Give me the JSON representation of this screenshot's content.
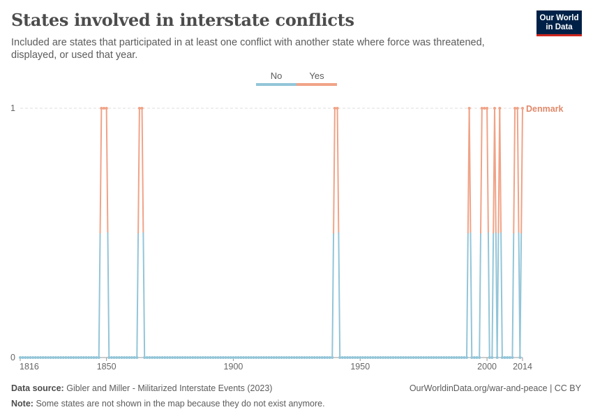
{
  "header": {
    "title": "States involved in interstate conflicts",
    "subtitle": "Included are states that participated in at least one conflict with another state where force was threatened, displayed, or used that year.",
    "logo_line1": "Our World",
    "logo_line2": "in Data"
  },
  "legend": {
    "no_label": "No",
    "yes_label": "Yes"
  },
  "colors": {
    "no": "#93c5d8",
    "yes": "#f0a387",
    "series_label": "#e0896a",
    "grid": "#dddddd",
    "axis_text": "#666666"
  },
  "chart_data": {
    "type": "line",
    "title": "States involved in interstate conflicts",
    "series_name": "Denmark",
    "x_range": [
      1816,
      2014
    ],
    "ylim": [
      0,
      1
    ],
    "x_ticks": [
      1816,
      1850,
      1900,
      1950,
      2000,
      2014
    ],
    "y_ticks": [
      0,
      1
    ],
    "x_tick_labels": [
      "1816",
      "1850",
      "1900",
      "1950",
      "2000",
      "2014"
    ],
    "y_tick_labels": [
      "0",
      "1"
    ],
    "value_labels": {
      "0": "No",
      "1": "Yes"
    },
    "yes_years": [
      1848,
      1849,
      1850,
      1863,
      1864,
      1940,
      1941,
      1993,
      1998,
      1999,
      2000,
      2003,
      2005,
      2011,
      2012,
      2014
    ],
    "default_value": 0
  },
  "footer": {
    "source_label": "Data source:",
    "source_text": "Gibler and Miller - Militarized Interstate Events (2023)",
    "credit": "OurWorldinData.org/war-and-peace | CC BY",
    "note_label": "Note:",
    "note_text": "Some states are not shown in the map because they do not exist anymore."
  }
}
